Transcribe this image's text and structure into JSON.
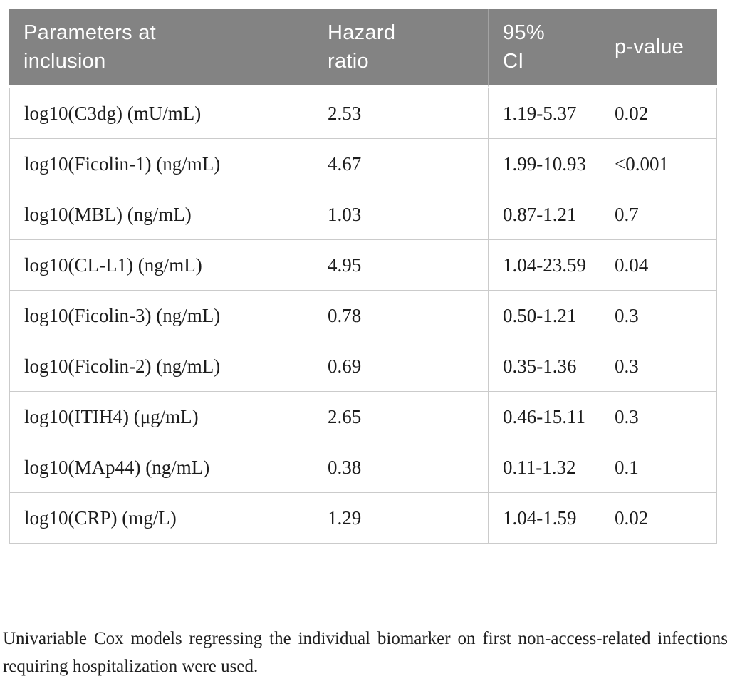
{
  "table": {
    "headers": [
      "Parameters at inclusion",
      "Hazard ratio",
      "95% CI",
      "p-value"
    ],
    "rows": [
      {
        "parameter": "log10(C3dg) (mU/mL)",
        "hazard_ratio": "2.53",
        "ci": "1.19-5.37",
        "p": "0.02"
      },
      {
        "parameter": "log10(Ficolin-1) (ng/mL)",
        "hazard_ratio": "4.67",
        "ci": "1.99-10.93",
        "p": "<0.001"
      },
      {
        "parameter": "log10(MBL) (ng/mL)",
        "hazard_ratio": "1.03",
        "ci": "0.87-1.21",
        "p": "0.7"
      },
      {
        "parameter": "log10(CL-L1) (ng/mL)",
        "hazard_ratio": "4.95",
        "ci": "1.04-23.59",
        "p": "0.04"
      },
      {
        "parameter": "log10(Ficolin-3) (ng/mL)",
        "hazard_ratio": "0.78",
        "ci": "0.50-1.21",
        "p": "0.3"
      },
      {
        "parameter": "log10(Ficolin-2) (ng/mL)",
        "hazard_ratio": "0.69",
        "ci": "0.35-1.36",
        "p": "0.3"
      },
      {
        "parameter": "log10(ITIH4) (μg/mL)",
        "hazard_ratio": "2.65",
        "ci": "0.46-15.11",
        "p": "0.3"
      },
      {
        "parameter": "log10(MAp44) (ng/mL)",
        "hazard_ratio": "0.38",
        "ci": "0.11-1.32",
        "p": "0.1"
      },
      {
        "parameter": "log10(CRP) (mg/L)",
        "hazard_ratio": "1.29",
        "ci": "1.04-1.59",
        "p": "0.02"
      }
    ]
  },
  "footnote": "Univariable Cox models regressing the individual biomarker on first non-access-related infections requiring hospitalization were used.",
  "colors": {
    "header_background": "#838383",
    "header_text": "#ffffff",
    "header_divider": "#a3a3a3",
    "body_border": "#cbcbcb",
    "body_text": "#1c1c1c",
    "page_background": "#ffffff"
  }
}
